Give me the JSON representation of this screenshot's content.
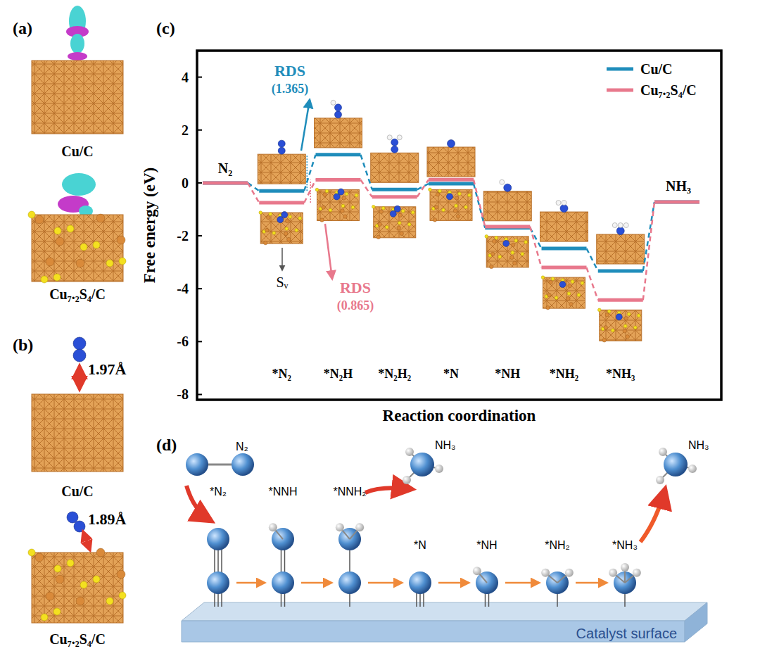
{
  "panels": {
    "a": {
      "label": "(a)",
      "structures": [
        "Cu/C",
        "Cu₇.₂S₄/C"
      ]
    },
    "b": {
      "label": "(b)",
      "structures": [
        {
          "name": "Cu/C",
          "bond_length": "1.97Å"
        },
        {
          "name": "Cu₇.₂S₄/C",
          "bond_length": "1.89Å"
        }
      ]
    },
    "c": {
      "label": "(c)"
    },
    "d": {
      "label": "(d)",
      "feed": "N₂",
      "surface": "Catalyst surface",
      "steps": [
        {
          "label": "*N₂"
        },
        {
          "label": "*NNH"
        },
        {
          "label": "*NNH₂",
          "released": "NH₃"
        },
        {
          "label": "*N"
        },
        {
          "label": "*NH"
        },
        {
          "label": "*NH₂"
        },
        {
          "label": "*NH₃",
          "released": "NH₃"
        }
      ]
    }
  },
  "chart_data": {
    "type": "step",
    "x_label": "Reaction coordination",
    "y_label": "Free energy (eV)",
    "categories": [
      "N₂",
      "*N₂",
      "*N₂H",
      "*N₂H₂",
      "*N",
      "*NH",
      "*NH₂",
      "*NH₃",
      "NH₃"
    ],
    "series": [
      {
        "name": "Cu/C",
        "color": "#1f8dbb",
        "values": [
          0,
          -0.3,
          1.065,
          -0.25,
          -0.03,
          -1.7,
          -2.48,
          -3.33,
          -0.72
        ]
      },
      {
        "name": "Cu₇.₂S₄/C",
        "color": "#e8788c",
        "values": [
          0,
          -0.75,
          0.115,
          -0.53,
          0.12,
          -1.65,
          -3.2,
          -4.43,
          -0.72
        ]
      }
    ],
    "ylim": [
      -8.2,
      5.0
    ],
    "yticks": [
      -8,
      -6,
      -4,
      -2,
      0,
      2,
      4
    ],
    "legend": "upper right",
    "annotations": [
      {
        "text": "RDS",
        "value": 1.365,
        "label": "(1.365)",
        "series": 0,
        "from": "*N₂",
        "to": "*N₂H"
      },
      {
        "text": "RDS",
        "value": 0.865,
        "label": "(0.865)",
        "series": 1,
        "from": "*N₂",
        "to": "*N₂H"
      },
      {
        "text": "Sᵥ"
      }
    ]
  }
}
